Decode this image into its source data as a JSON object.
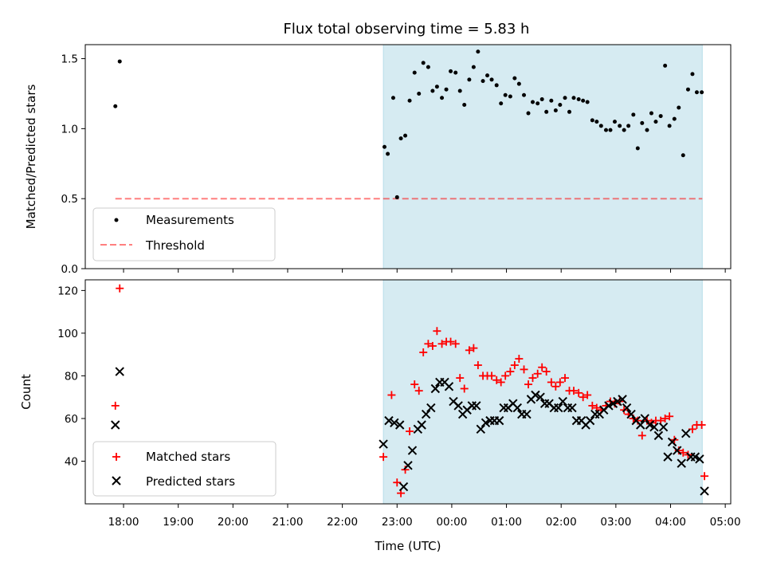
{
  "chart_data": [
    {
      "type": "scatter",
      "title": "Flux total observing time = 5.83 h",
      "xlabel": "",
      "ylabel": "Matched/Predicted stars",
      "ylim": [
        0,
        1.6
      ],
      "yticks": [
        "0.0",
        "0.5",
        "1.0",
        "1.5"
      ],
      "xlim_hours": [
        17.3,
        29.1
      ],
      "shaded_interval_hours": [
        22.75,
        28.58
      ],
      "legend": {
        "placement": "lower-left",
        "entries": [
          "Measurements",
          "Threshold"
        ]
      },
      "threshold": {
        "name": "Threshold",
        "value": 0.5,
        "x_range_hours": [
          17.85,
          28.58
        ]
      },
      "series": [
        {
          "name": "Measurements",
          "x_hours": [
            17.85,
            17.93,
            22.77,
            22.83,
            22.93,
            23.0,
            23.07,
            23.15,
            23.23,
            23.32,
            23.4,
            23.48,
            23.57,
            23.65,
            23.73,
            23.82,
            23.9,
            23.98,
            24.07,
            24.15,
            24.23,
            24.32,
            24.4,
            24.48,
            24.57,
            24.65,
            24.73,
            24.82,
            24.9,
            24.98,
            25.07,
            25.15,
            25.23,
            25.32,
            25.4,
            25.48,
            25.57,
            25.65,
            25.73,
            25.82,
            25.9,
            25.98,
            26.07,
            26.15,
            26.23,
            26.32,
            26.4,
            26.48,
            26.57,
            26.65,
            26.73,
            26.82,
            26.9,
            26.98,
            27.07,
            27.15,
            27.23,
            27.32,
            27.4,
            27.48,
            27.57,
            27.65,
            27.73,
            27.82,
            27.9,
            27.98,
            28.07,
            28.15,
            28.23,
            28.32,
            28.4,
            28.48,
            28.57
          ],
          "y_values": [
            1.16,
            1.48,
            0.87,
            0.82,
            1.22,
            0.51,
            0.93,
            0.95,
            1.2,
            1.4,
            1.25,
            1.47,
            1.44,
            1.27,
            1.3,
            1.22,
            1.28,
            1.41,
            1.4,
            1.27,
            1.17,
            1.35,
            1.44,
            1.55,
            1.34,
            1.38,
            1.35,
            1.31,
            1.18,
            1.24,
            1.23,
            1.36,
            1.32,
            1.24,
            1.11,
            1.19,
            1.18,
            1.21,
            1.12,
            1.2,
            1.13,
            1.17,
            1.22,
            1.12,
            1.22,
            1.21,
            1.2,
            1.19,
            1.06,
            1.05,
            1.02,
            0.99,
            0.99,
            1.05,
            1.02,
            0.99,
            1.02,
            1.1,
            0.86,
            1.04,
            0.99,
            1.11,
            1.05,
            1.09,
            1.45,
            1.02,
            1.07,
            1.15,
            0.81,
            1.28,
            1.39,
            1.26,
            1.26
          ]
        }
      ]
    },
    {
      "type": "scatter",
      "title": "",
      "xlabel": "Time (UTC)",
      "ylabel": "Count",
      "ylim": [
        20,
        125
      ],
      "yticks": [
        "40",
        "60",
        "80",
        "100",
        "120"
      ],
      "x_tick_labels": [
        "18:00",
        "19:00",
        "20:00",
        "21:00",
        "22:00",
        "23:00",
        "00:00",
        "01:00",
        "02:00",
        "03:00",
        "04:00",
        "05:00"
      ],
      "xlim_hours": [
        17.3,
        29.1
      ],
      "shaded_interval_hours": [
        22.75,
        28.58
      ],
      "legend": {
        "placement": "lower-left",
        "entries": [
          "Matched stars",
          "Predicted stars"
        ]
      },
      "series": [
        {
          "name": "Matched stars",
          "color": "#ff0000",
          "marker": "plus",
          "x_hours": [
            17.85,
            17.93,
            22.75,
            22.9,
            23.0,
            23.07,
            23.15,
            23.23,
            23.32,
            23.4,
            23.48,
            23.57,
            23.65,
            23.73,
            23.82,
            23.9,
            23.98,
            24.07,
            24.15,
            24.23,
            24.32,
            24.4,
            24.48,
            24.57,
            24.65,
            24.73,
            24.82,
            24.9,
            24.98,
            25.07,
            25.15,
            25.23,
            25.32,
            25.4,
            25.48,
            25.57,
            25.65,
            25.73,
            25.82,
            25.9,
            25.98,
            26.07,
            26.15,
            26.23,
            26.32,
            26.4,
            26.48,
            26.57,
            26.65,
            26.73,
            26.82,
            26.9,
            26.98,
            27.07,
            27.15,
            27.23,
            27.32,
            27.4,
            27.48,
            27.57,
            27.65,
            27.73,
            27.82,
            27.9,
            27.98,
            28.07,
            28.15,
            28.23,
            28.32,
            28.4,
            28.48,
            28.57,
            28.62
          ],
          "y_values": [
            66,
            121,
            42,
            71,
            30,
            25,
            36,
            54,
            76,
            73,
            91,
            95,
            94,
            101,
            95,
            96,
            96,
            95,
            79,
            74,
            92,
            93,
            85,
            80,
            80,
            80,
            78,
            77,
            80,
            82,
            85,
            88,
            83,
            76,
            79,
            81,
            84,
            82,
            77,
            75,
            77,
            79,
            73,
            73,
            72,
            70,
            71,
            66,
            65,
            64,
            66,
            68,
            67,
            68,
            64,
            62,
            60,
            59,
            52,
            59,
            58,
            59,
            59,
            60,
            61,
            50,
            45,
            44,
            43,
            55,
            57,
            57,
            33
          ]
        },
        {
          "name": "Predicted stars",
          "color": "#000000",
          "marker": "x",
          "x_hours": [
            17.85,
            17.93,
            22.75,
            22.85,
            22.95,
            23.05,
            23.12,
            23.2,
            23.28,
            23.38,
            23.45,
            23.53,
            23.62,
            23.7,
            23.78,
            23.87,
            23.95,
            24.03,
            24.12,
            24.2,
            24.28,
            24.37,
            24.45,
            24.53,
            24.62,
            24.7,
            24.78,
            24.87,
            24.95,
            25.03,
            25.12,
            25.2,
            25.28,
            25.37,
            25.45,
            25.53,
            25.62,
            25.7,
            25.78,
            25.87,
            25.95,
            26.03,
            26.12,
            26.2,
            26.28,
            26.37,
            26.45,
            26.53,
            26.62,
            26.7,
            26.78,
            26.87,
            26.95,
            27.03,
            27.12,
            27.2,
            27.28,
            27.37,
            27.45,
            27.53,
            27.62,
            27.7,
            27.78,
            27.87,
            27.95,
            28.03,
            28.12,
            28.2,
            28.28,
            28.37,
            28.45,
            28.53,
            28.62
          ],
          "y_values": [
            57,
            82,
            48,
            59,
            58,
            57,
            28,
            38,
            45,
            55,
            57,
            62,
            65,
            74,
            77,
            77,
            75,
            68,
            66,
            62,
            64,
            66,
            66,
            55,
            58,
            59,
            59,
            59,
            65,
            65,
            67,
            65,
            62,
            62,
            69,
            71,
            70,
            67,
            67,
            65,
            65,
            68,
            65,
            65,
            59,
            59,
            57,
            59,
            62,
            62,
            64,
            66,
            67,
            68,
            69,
            65,
            62,
            59,
            57,
            60,
            57,
            56,
            52,
            56,
            42,
            49,
            45,
            39,
            53,
            42,
            42,
            41,
            26
          ]
        }
      ]
    }
  ]
}
